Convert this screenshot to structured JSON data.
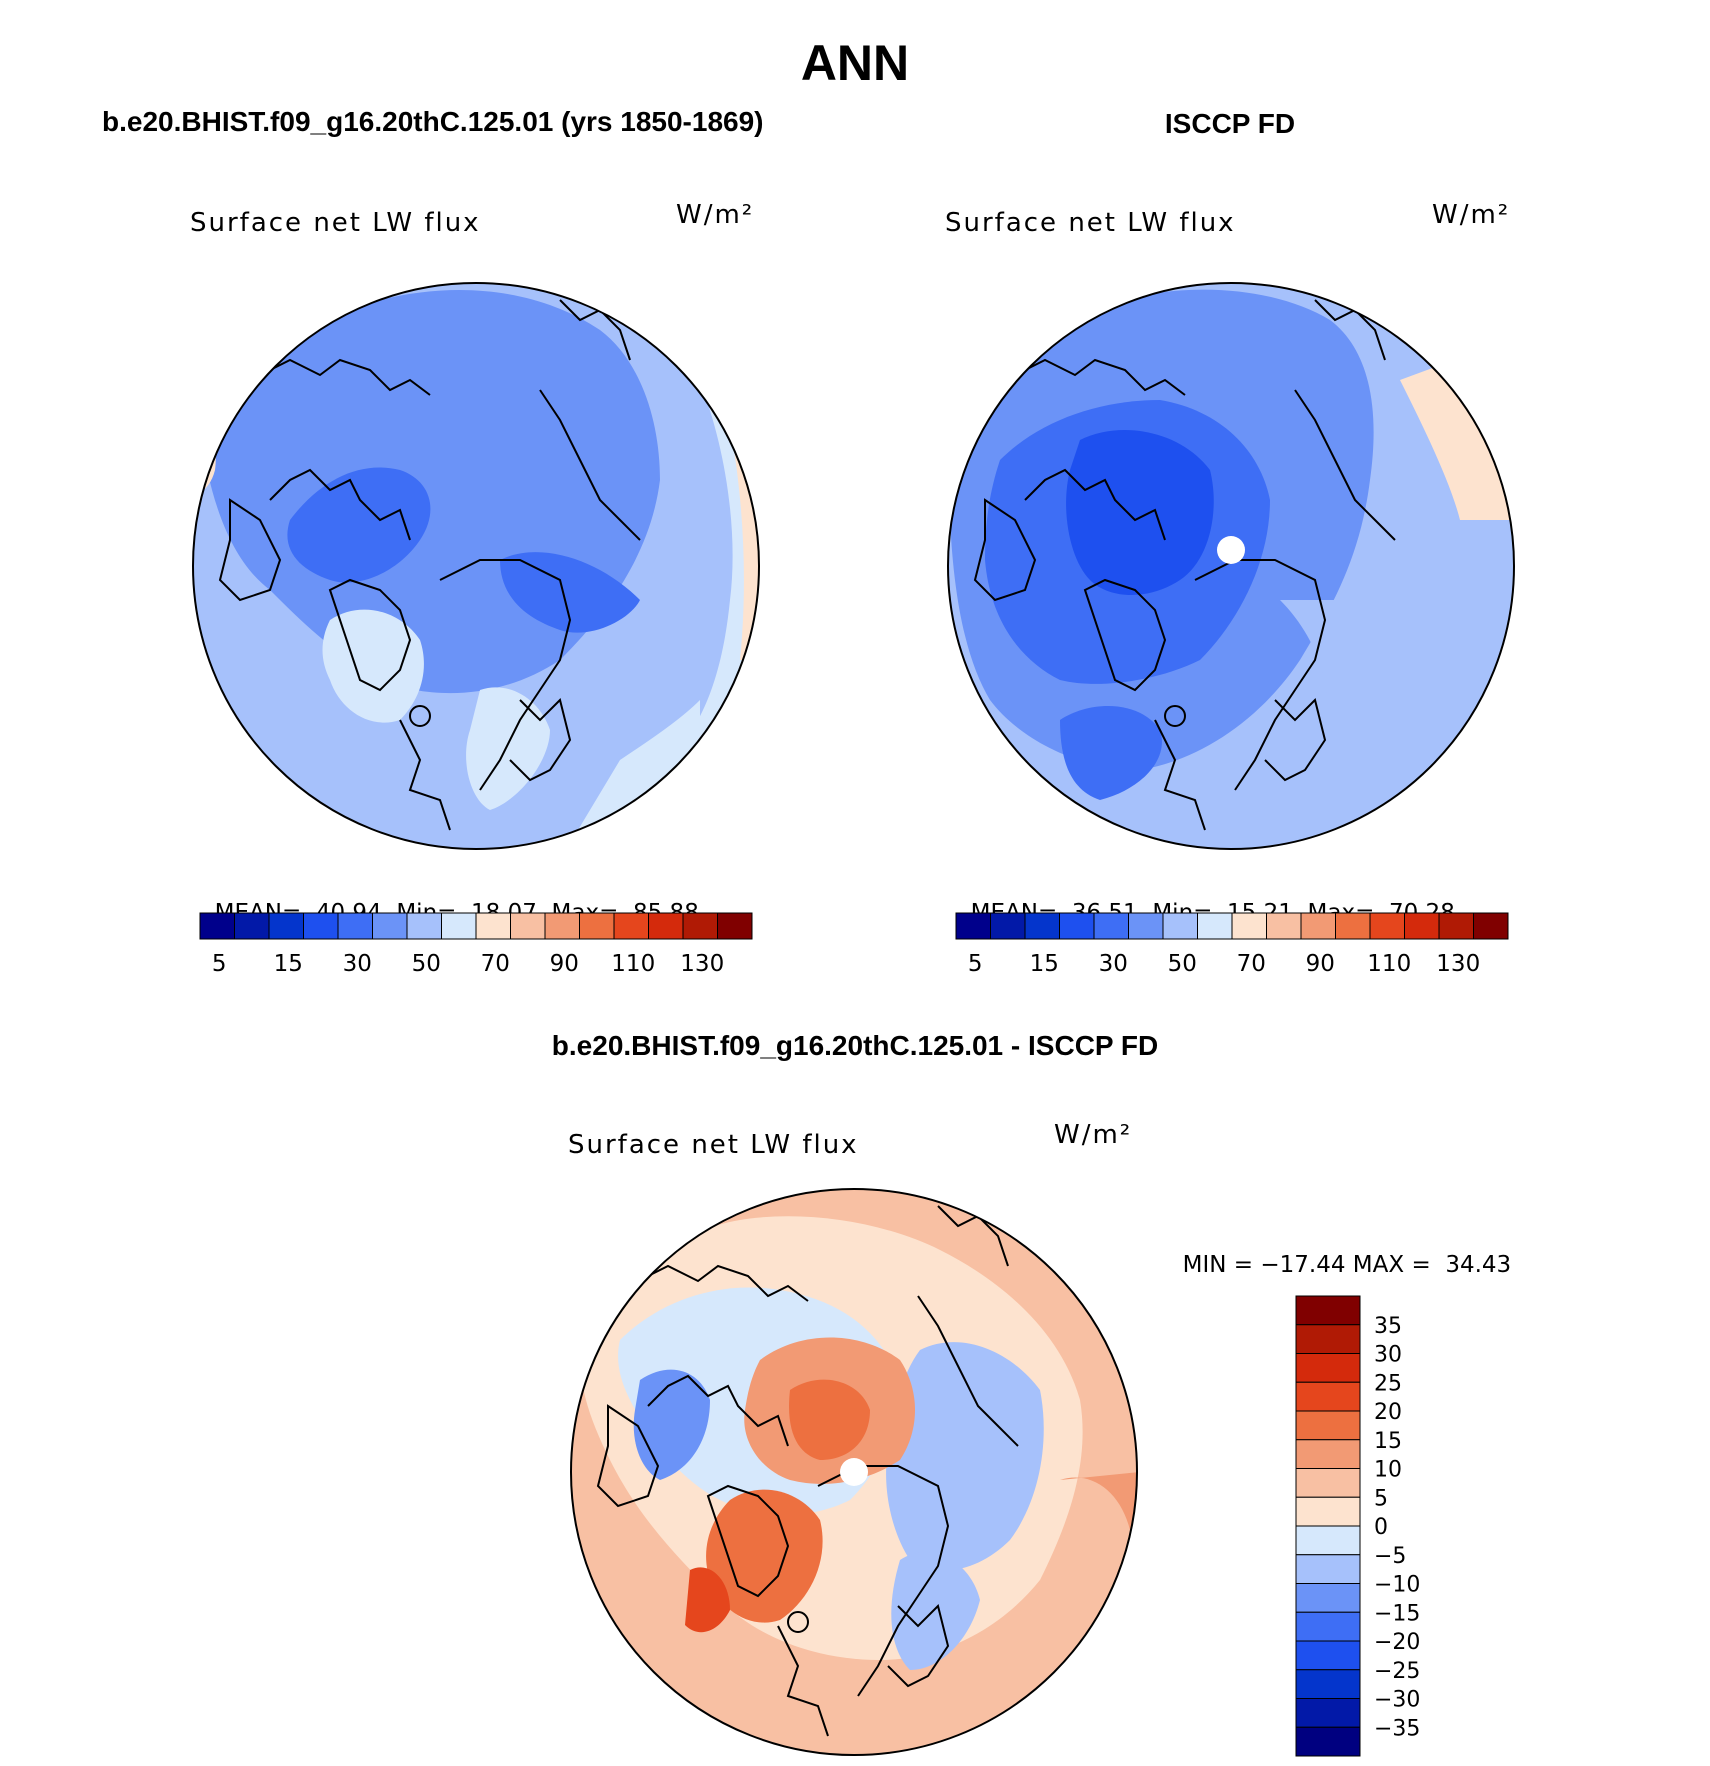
{
  "figure": {
    "title": "ANN"
  },
  "colors": {
    "cool_scale": [
      "#00008b",
      "#0219a8",
      "#0435cc",
      "#1e50ef",
      "#3e6ef5",
      "#6b93f7",
      "#a6c1fb",
      "#d6e8fc",
      "#fde3cf",
      "#f8c0a3",
      "#f29a74",
      "#ed7040",
      "#e5461d",
      "#d42a0c",
      "#b01a05",
      "#800000"
    ],
    "diff_scale": [
      "#000080",
      "#0219a8",
      "#0435cc",
      "#1e50ef",
      "#3e6ef5",
      "#6b93f7",
      "#a6c1fb",
      "#d6e8fc",
      "#fde3cf",
      "#f8c0a3",
      "#f29a74",
      "#ed7040",
      "#e5461d",
      "#d42a0c",
      "#b01a05",
      "#800000"
    ]
  },
  "panels": [
    {
      "id": "model",
      "case_title": "b.e20.BHIST.f09_g16.20thC.125.01 (yrs 1850-1869)",
      "field_label": "Surface net LW flux",
      "units": "W/m²",
      "stats": {
        "mean_label": "MEAN=",
        "mean": "40.94",
        "min_label": "Min=",
        "min": "18.07",
        "max_label": "Max=",
        "max": "85.88"
      },
      "colorbar_ticks": [
        "5",
        "15",
        "30",
        "50",
        "70",
        "90",
        "110",
        "130"
      ],
      "dominant_level": 5,
      "has_pole_hole": false
    },
    {
      "id": "obs",
      "case_title": "ISCCP FD",
      "field_label": "Surface net LW flux",
      "units": "W/m²",
      "stats": {
        "mean_label": "MEAN=",
        "mean": "36.51",
        "min_label": "Min=",
        "min": "15.21",
        "max_label": "Max=",
        "max": "70.28"
      },
      "colorbar_ticks": [
        "5",
        "15",
        "30",
        "50",
        "70",
        "90",
        "110",
        "130"
      ],
      "dominant_level": 4,
      "has_pole_hole": true
    },
    {
      "id": "diff",
      "case_title": "b.e20.BHIST.f09_g16.20thC.125.01 - ISCCP FD",
      "field_label": "Surface net LW flux",
      "units": "W/m²",
      "stats": {
        "min_label": "MIN =",
        "min": "−17.44",
        "max_label": "MAX =",
        "max": "34.43"
      },
      "colorbar_ticks": [
        "35",
        "30",
        "25",
        "20",
        "15",
        "10",
        "5",
        "0",
        "−5",
        "−10",
        "−15",
        "−20",
        "−25",
        "−30",
        "−35"
      ],
      "has_pole_hole": true
    }
  ]
}
